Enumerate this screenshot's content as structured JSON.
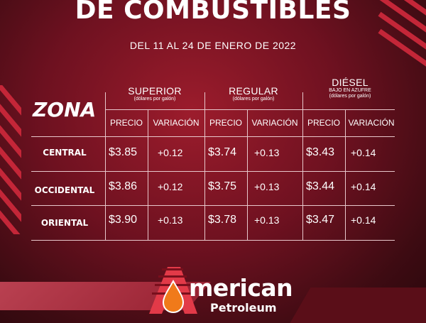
{
  "title": "DE COMBUSTIBLES",
  "subtitle": "DEL 11 AL 24 DE ENERO DE 2022",
  "zona_label": "ZONA",
  "groups": [
    {
      "name": "SUPERIOR",
      "unit": "(dólares por galón)",
      "note": ""
    },
    {
      "name": "REGULAR",
      "unit": "(dólares por galón)",
      "note": ""
    },
    {
      "name": "DIÉSEL",
      "note": "BAJO EN AZUFRE",
      "unit": "(dólares por galón)"
    }
  ],
  "col_precio": "PRECIO",
  "col_variacion": "VARIACIÓN",
  "rows": [
    {
      "zone": "CENTRAL",
      "superior_price": "$3.85",
      "superior_var": "+0.12",
      "regular_price": "$3.74",
      "regular_var": "+0.13",
      "diesel_price": "$3.43",
      "diesel_var": "+0.14"
    },
    {
      "zone": "OCCIDENTAL",
      "superior_price": "$3.86",
      "superior_var": "+0.12",
      "regular_price": "$3.75",
      "regular_var": "+0.13",
      "diesel_price": "$3.44",
      "diesel_var": "+0.14"
    },
    {
      "zone": "ORIENTAL",
      "superior_price": "$3.90",
      "superior_var": "+0.13",
      "regular_price": "$3.78",
      "regular_var": "+0.13",
      "diesel_price": "$3.47",
      "diesel_var": "+0.14"
    }
  ],
  "logo": {
    "main": "merican",
    "sub": "Petroleum",
    "letter": "A"
  },
  "colors": {
    "accent": "#c42638",
    "background": "#6e1120",
    "drop": "#f07a1a"
  }
}
